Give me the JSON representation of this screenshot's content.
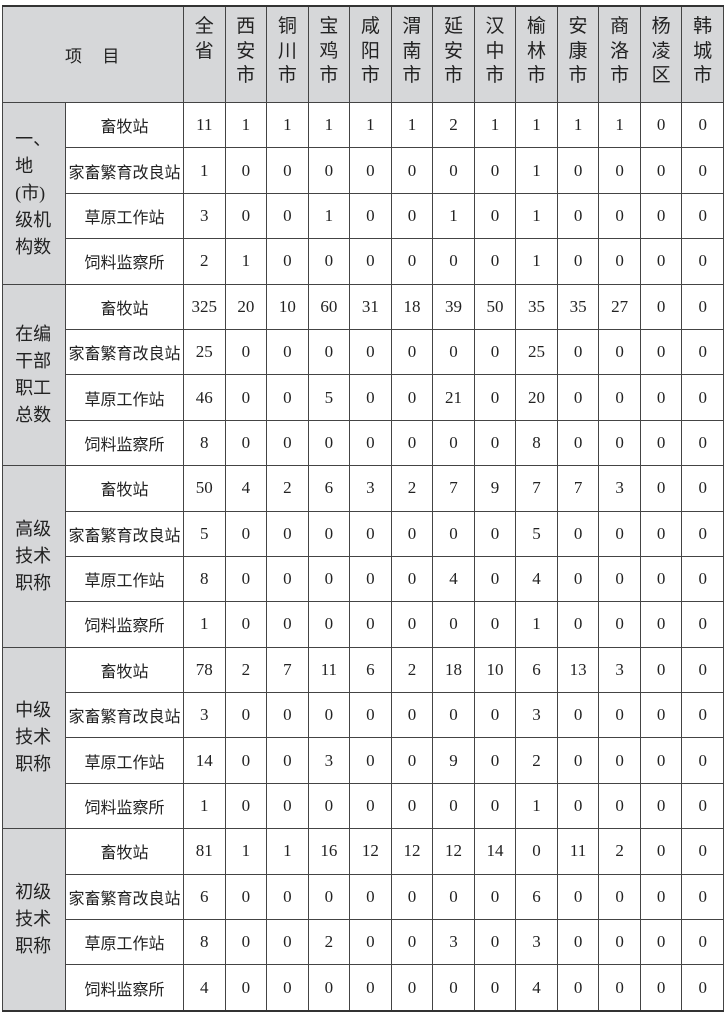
{
  "header": {
    "item_label": "项　目",
    "columns": [
      "全省",
      "西安市",
      "铜川市",
      "宝鸡市",
      "咸阳市",
      "渭南市",
      "延安市",
      "汉中市",
      "榆林市",
      "安康市",
      "商洛市",
      "杨凌区",
      "韩城市"
    ]
  },
  "groups": [
    {
      "label": "一、地(市)级机构数",
      "rows": [
        {
          "name": "畜牧站",
          "values": [
            "11",
            "1",
            "1",
            "1",
            "1",
            "1",
            "2",
            "1",
            "1",
            "1",
            "1",
            "0",
            "0"
          ]
        },
        {
          "name": "家畜繁育改良站",
          "values": [
            "1",
            "0",
            "0",
            "0",
            "0",
            "0",
            "0",
            "0",
            "1",
            "0",
            "0",
            "0",
            "0"
          ]
        },
        {
          "name": "草原工作站",
          "values": [
            "3",
            "0",
            "0",
            "1",
            "0",
            "0",
            "1",
            "0",
            "1",
            "0",
            "0",
            "0",
            "0"
          ]
        },
        {
          "name": "饲料监察所",
          "values": [
            "2",
            "1",
            "0",
            "0",
            "0",
            "0",
            "0",
            "0",
            "1",
            "0",
            "0",
            "0",
            "0"
          ]
        }
      ]
    },
    {
      "label": "在编干部职工总数",
      "rows": [
        {
          "name": "畜牧站",
          "values": [
            "325",
            "20",
            "10",
            "60",
            "31",
            "18",
            "39",
            "50",
            "35",
            "35",
            "27",
            "0",
            "0"
          ]
        },
        {
          "name": "家畜繁育改良站",
          "values": [
            "25",
            "0",
            "0",
            "0",
            "0",
            "0",
            "0",
            "0",
            "25",
            "0",
            "0",
            "0",
            "0"
          ]
        },
        {
          "name": "草原工作站",
          "values": [
            "46",
            "0",
            "0",
            "5",
            "0",
            "0",
            "21",
            "0",
            "20",
            "0",
            "0",
            "0",
            "0"
          ]
        },
        {
          "name": "饲料监察所",
          "values": [
            "8",
            "0",
            "0",
            "0",
            "0",
            "0",
            "0",
            "0",
            "8",
            "0",
            "0",
            "0",
            "0"
          ]
        }
      ]
    },
    {
      "label": "高级技术职称",
      "rows": [
        {
          "name": "畜牧站",
          "values": [
            "50",
            "4",
            "2",
            "6",
            "3",
            "2",
            "7",
            "9",
            "7",
            "7",
            "3",
            "0",
            "0"
          ]
        },
        {
          "name": "家畜繁育改良站",
          "values": [
            "5",
            "0",
            "0",
            "0",
            "0",
            "0",
            "0",
            "0",
            "5",
            "0",
            "0",
            "0",
            "0"
          ]
        },
        {
          "name": "草原工作站",
          "values": [
            "8",
            "0",
            "0",
            "0",
            "0",
            "0",
            "4",
            "0",
            "4",
            "0",
            "0",
            "0",
            "0"
          ]
        },
        {
          "name": "饲料监察所",
          "values": [
            "1",
            "0",
            "0",
            "0",
            "0",
            "0",
            "0",
            "0",
            "1",
            "0",
            "0",
            "0",
            "0"
          ]
        }
      ]
    },
    {
      "label": "中级技术职称",
      "rows": [
        {
          "name": "畜牧站",
          "values": [
            "78",
            "2",
            "7",
            "11",
            "6",
            "2",
            "18",
            "10",
            "6",
            "13",
            "3",
            "0",
            "0"
          ]
        },
        {
          "name": "家畜繁育改良站",
          "values": [
            "3",
            "0",
            "0",
            "0",
            "0",
            "0",
            "0",
            "0",
            "3",
            "0",
            "0",
            "0",
            "0"
          ]
        },
        {
          "name": "草原工作站",
          "values": [
            "14",
            "0",
            "0",
            "3",
            "0",
            "0",
            "9",
            "0",
            "2",
            "0",
            "0",
            "0",
            "0"
          ]
        },
        {
          "name": "饲料监察所",
          "values": [
            "1",
            "0",
            "0",
            "0",
            "0",
            "0",
            "0",
            "0",
            "1",
            "0",
            "0",
            "0",
            "0"
          ]
        }
      ]
    },
    {
      "label": "初级技术职称",
      "rows": [
        {
          "name": "畜牧站",
          "values": [
            "81",
            "1",
            "1",
            "16",
            "12",
            "12",
            "12",
            "14",
            "0",
            "11",
            "2",
            "0",
            "0"
          ]
        },
        {
          "name": "家畜繁育改良站",
          "values": [
            "6",
            "0",
            "0",
            "0",
            "0",
            "0",
            "0",
            "0",
            "6",
            "0",
            "0",
            "0",
            "0"
          ]
        },
        {
          "name": "草原工作站",
          "values": [
            "8",
            "0",
            "0",
            "2",
            "0",
            "0",
            "3",
            "0",
            "3",
            "0",
            "0",
            "0",
            "0"
          ]
        },
        {
          "name": "饲料监察所",
          "values": [
            "4",
            "0",
            "0",
            "0",
            "0",
            "0",
            "0",
            "0",
            "4",
            "0",
            "0",
            "0",
            "0"
          ]
        }
      ]
    }
  ]
}
